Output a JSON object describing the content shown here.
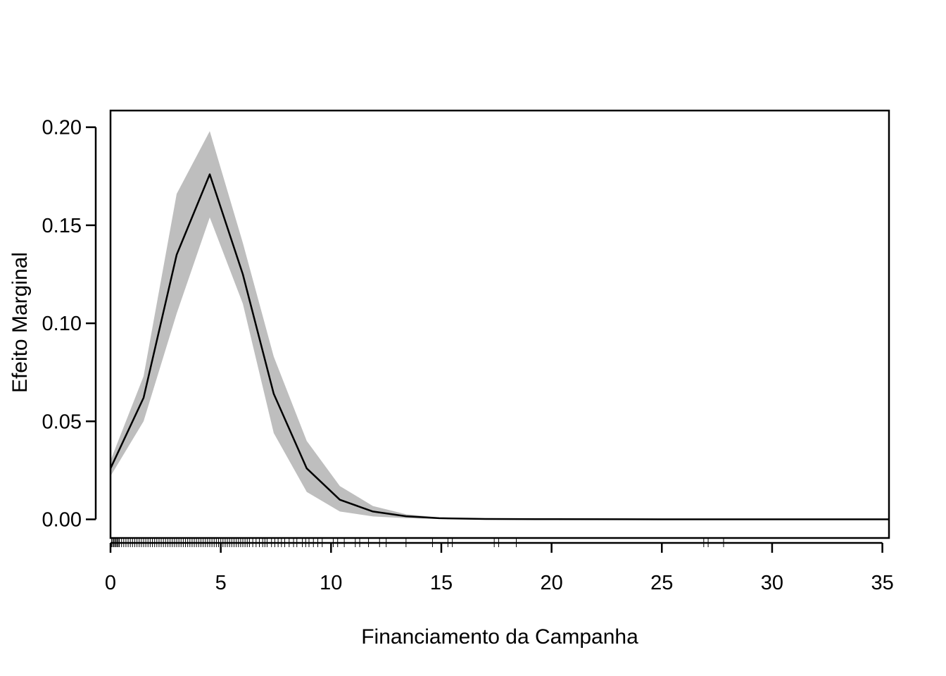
{
  "chart_data": {
    "type": "line",
    "title": "",
    "xlabel": "Financiamento da Campanha",
    "ylabel": "Efeito Marginal",
    "xlim": [
      0,
      35.3
    ],
    "ylim": [
      -0.0095,
      0.2085
    ],
    "x_ticks": [
      0,
      5,
      10,
      15,
      20,
      25,
      30,
      35
    ],
    "x_tick_labels": [
      "0",
      "5",
      "10",
      "15",
      "20",
      "25",
      "30",
      "35"
    ],
    "y_ticks": [
      0.0,
      0.05,
      0.1,
      0.15,
      0.2
    ],
    "y_tick_labels": [
      "0.00",
      "0.05",
      "0.10",
      "0.15",
      "0.20"
    ],
    "grid": false,
    "legend": "none",
    "colors": {
      "line": "#000000",
      "band": "#bebebe",
      "axis": "#000000"
    },
    "series": [
      {
        "x": [
          0,
          1.5,
          3.0,
          4.5,
          6.0,
          7.4,
          8.9,
          10.4,
          11.9,
          13.4,
          14.9,
          17,
          20,
          25,
          30,
          35.3
        ],
        "values": [
          0.026,
          0.062,
          0.135,
          0.176,
          0.125,
          0.064,
          0.026,
          0.01,
          0.004,
          0.0016,
          0.0006,
          0.0002,
          0.0001,
          0.0,
          0.0,
          0.0
        ],
        "lower": [
          0.022,
          0.05,
          0.105,
          0.154,
          0.11,
          0.044,
          0.014,
          0.004,
          0.0015,
          0.0006,
          0.0002,
          0.0001,
          0.0,
          0.0,
          0.0,
          0.0
        ],
        "upper": [
          0.03,
          0.073,
          0.166,
          0.198,
          0.141,
          0.083,
          0.04,
          0.017,
          0.0068,
          0.0026,
          0.001,
          0.0003,
          0.0001,
          0.0,
          0.0,
          0.0
        ]
      }
    ],
    "rug_x": [
      0.05,
      0.1,
      0.15,
      0.2,
      0.25,
      0.3,
      0.35,
      0.4,
      0.5,
      0.6,
      0.7,
      0.8,
      0.9,
      1.0,
      1.1,
      1.2,
      1.3,
      1.4,
      1.5,
      1.6,
      1.7,
      1.8,
      1.9,
      2.0,
      2.1,
      2.2,
      2.3,
      2.4,
      2.5,
      2.6,
      2.7,
      2.8,
      2.9,
      3.0,
      3.1,
      3.2,
      3.3,
      3.4,
      3.5,
      3.6,
      3.7,
      3.8,
      3.9,
      4.0,
      4.1,
      4.2,
      4.3,
      4.4,
      4.5,
      4.6,
      4.7,
      4.8,
      4.9,
      5.0,
      5.1,
      5.2,
      5.3,
      5.4,
      5.5,
      5.6,
      5.7,
      5.8,
      5.9,
      6.0,
      6.1,
      6.2,
      6.3,
      6.45,
      6.6,
      6.75,
      6.9,
      7.0,
      7.1,
      7.3,
      7.45,
      7.6,
      7.75,
      7.9,
      8.1,
      8.3,
      8.45,
      8.7,
      8.85,
      9.0,
      9.2,
      9.4,
      9.6,
      10.1,
      10.3,
      10.6,
      11.1,
      11.3,
      11.7,
      12.2,
      12.5,
      13.4,
      14.6,
      15.3,
      15.5,
      17.4,
      17.6,
      18.4,
      26.9,
      27.1,
      27.8
    ]
  }
}
